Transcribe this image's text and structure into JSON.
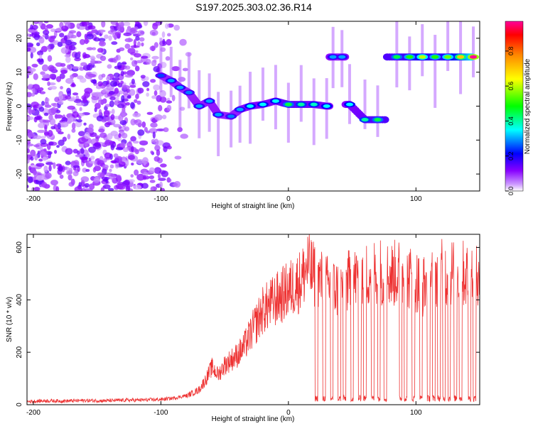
{
  "title": "S197.2025.303.02.36.R14",
  "chart_data": [
    {
      "type": "heatmap",
      "name": "spectrogram",
      "xlabel": "Height of straight line (km)",
      "ylabel": "Frequency (Hz)",
      "xlim": [
        -205,
        150
      ],
      "ylim": [
        -25,
        25
      ],
      "xticks": [
        -200,
        -100,
        0,
        100
      ],
      "yticks": [
        -20,
        -10,
        0,
        10,
        20
      ],
      "colorbar": {
        "label": "Normalized spectral amplitude",
        "range": [
          0,
          0.97
        ],
        "ticks": [
          0.0,
          0.2,
          0.4,
          0.6,
          0.8
        ],
        "colors": [
          "#ffffff",
          "#cc99ff",
          "#8800ff",
          "#0000ff",
          "#00ffff",
          "#00ff00",
          "#ffff00",
          "#ff8800",
          "#ff0000",
          "#ff0099"
        ]
      },
      "ridge": {
        "description": "Dominant frequency trace vs height",
        "points": [
          {
            "x": -100,
            "y": 9,
            "amp": 0.25
          },
          {
            "x": -92,
            "y": 7.5,
            "amp": 0.3
          },
          {
            "x": -85,
            "y": 5.5,
            "amp": 0.3
          },
          {
            "x": -78,
            "y": 4,
            "amp": 0.28
          },
          {
            "x": -70,
            "y": 0,
            "amp": 0.3
          },
          {
            "x": -62,
            "y": 1.5,
            "amp": 0.3
          },
          {
            "x": -55,
            "y": -2.5,
            "amp": 0.3
          },
          {
            "x": -45,
            "y": -3,
            "amp": 0.28
          },
          {
            "x": -38,
            "y": -1,
            "amp": 0.3
          },
          {
            "x": -30,
            "y": 0,
            "amp": 0.35
          },
          {
            "x": -20,
            "y": 0.5,
            "amp": 0.35
          },
          {
            "x": -10,
            "y": 1.5,
            "amp": 0.35
          },
          {
            "x": 0,
            "y": 0.5,
            "amp": 0.45
          },
          {
            "x": 10,
            "y": 0.5,
            "amp": 0.4
          },
          {
            "x": 20,
            "y": 0.5,
            "amp": 0.38
          },
          {
            "x": 30,
            "y": 0,
            "amp": 0.35
          },
          {
            "x": 35,
            "y": 14.5,
            "amp": 0.3
          },
          {
            "x": 42,
            "y": 14.5,
            "amp": 0.3
          },
          {
            "x": 48,
            "y": 0.5,
            "amp": 0.35
          },
          {
            "x": 60,
            "y": -4,
            "amp": 0.4
          },
          {
            "x": 70,
            "y": -4,
            "amp": 0.45
          },
          {
            "x": 85,
            "y": 14.5,
            "amp": 0.45
          },
          {
            "x": 95,
            "y": 14.5,
            "amp": 0.5
          },
          {
            "x": 105,
            "y": 14.5,
            "amp": 0.6
          },
          {
            "x": 115,
            "y": 14.5,
            "amp": 0.5
          },
          {
            "x": 125,
            "y": 14.5,
            "amp": 0.55
          },
          {
            "x": 135,
            "y": 14.5,
            "amp": 0.7
          },
          {
            "x": 145,
            "y": 14.5,
            "amp": 0.97
          }
        ]
      }
    },
    {
      "type": "line",
      "name": "snr",
      "xlabel": "Height of straight line (km)",
      "ylabel": "SNR (10 * v/v)",
      "xlim": [
        -205,
        150
      ],
      "ylim": [
        0,
        650
      ],
      "xticks": [
        -200,
        -100,
        0,
        100
      ],
      "yticks": [
        0,
        200,
        400,
        600
      ],
      "series": [
        {
          "name": "SNR",
          "color": "#ee3333",
          "x": [
            -205,
            -190,
            -175,
            -160,
            -145,
            -130,
            -115,
            -100,
            -90,
            -80,
            -70,
            -65,
            -60,
            -55,
            -50,
            -45,
            -40,
            -35,
            -30,
            -25,
            -20,
            -15,
            -10,
            -5,
            0,
            5,
            10,
            15,
            20,
            25,
            30,
            35,
            40,
            45,
            50,
            55,
            60,
            65,
            70,
            75,
            80,
            85,
            90,
            95,
            100,
            105,
            110,
            115,
            120,
            125,
            130,
            135,
            140,
            145,
            150
          ],
          "values": [
            12,
            15,
            14,
            16,
            15,
            17,
            18,
            20,
            25,
            35,
            60,
            100,
            150,
            120,
            160,
            180,
            200,
            230,
            280,
            330,
            380,
            400,
            420,
            440,
            460,
            480,
            500,
            560,
            520,
            500,
            480,
            470,
            460,
            490,
            500,
            510,
            520,
            530,
            540,
            530,
            520,
            530,
            520,
            510,
            500,
            470,
            510,
            520,
            530,
            520,
            540,
            530,
            520,
            540,
            470
          ],
          "dropouts": [
            22,
            28,
            34,
            40,
            44,
            50,
            56,
            60,
            66,
            71,
            76,
            88,
            92,
            98,
            104,
            110,
            114,
            118,
            122,
            126,
            131,
            135,
            142,
            146
          ],
          "dropout_level": 40
        }
      ]
    }
  ]
}
